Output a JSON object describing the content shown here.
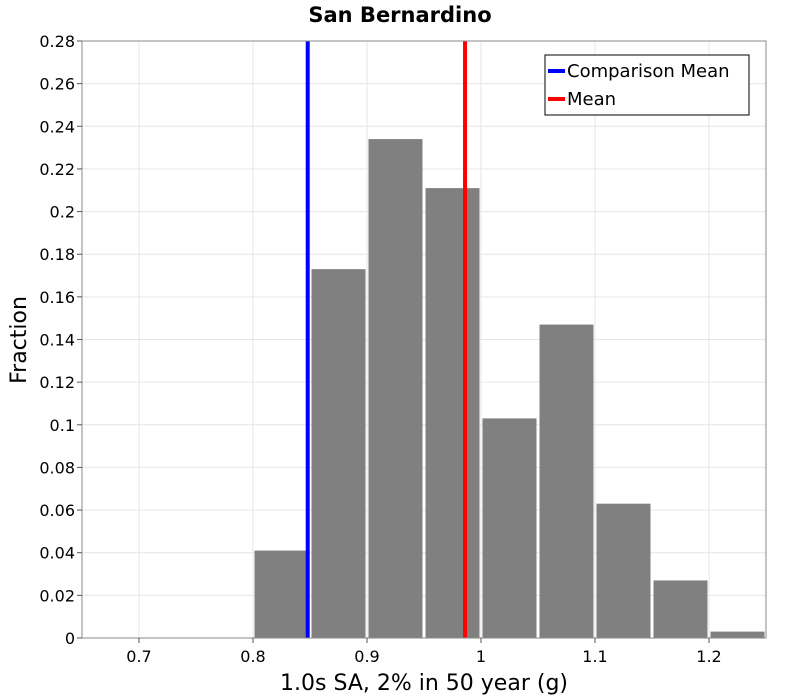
{
  "chart_data": {
    "type": "bar",
    "title": "San Bernardino",
    "xlabel": "1.0s SA, 2% in 50 year (g)",
    "ylabel": "Fraction",
    "xlim": [
      0.65,
      1.25
    ],
    "ylim": [
      0,
      0.28
    ],
    "xticks": [
      "0.7",
      "0.8",
      "0.9",
      "1",
      "1.1",
      "1.2"
    ],
    "yticks": [
      "0",
      "0.02",
      "0.04",
      "0.06",
      "0.08",
      "0.1",
      "0.12",
      "0.14",
      "0.16",
      "0.18",
      "0.2",
      "0.22",
      "0.24",
      "0.26",
      "0.28"
    ],
    "grid": true,
    "legend_position": "top-right",
    "bin_width": 0.05,
    "bins": [
      {
        "x": 0.825,
        "value": 0.041
      },
      {
        "x": 0.875,
        "value": 0.173
      },
      {
        "x": 0.925,
        "value": 0.234
      },
      {
        "x": 0.975,
        "value": 0.211
      },
      {
        "x": 1.025,
        "value": 0.103
      },
      {
        "x": 1.075,
        "value": 0.147
      },
      {
        "x": 1.125,
        "value": 0.063
      },
      {
        "x": 1.175,
        "value": 0.027
      },
      {
        "x": 1.225,
        "value": 0.003
      }
    ],
    "bar_color": "#808080",
    "lines": [
      {
        "name": "Comparison Mean",
        "x": 0.848,
        "color": "#0000ff"
      },
      {
        "name": "Mean",
        "x": 0.986,
        "color": "#ff0000"
      }
    ]
  }
}
